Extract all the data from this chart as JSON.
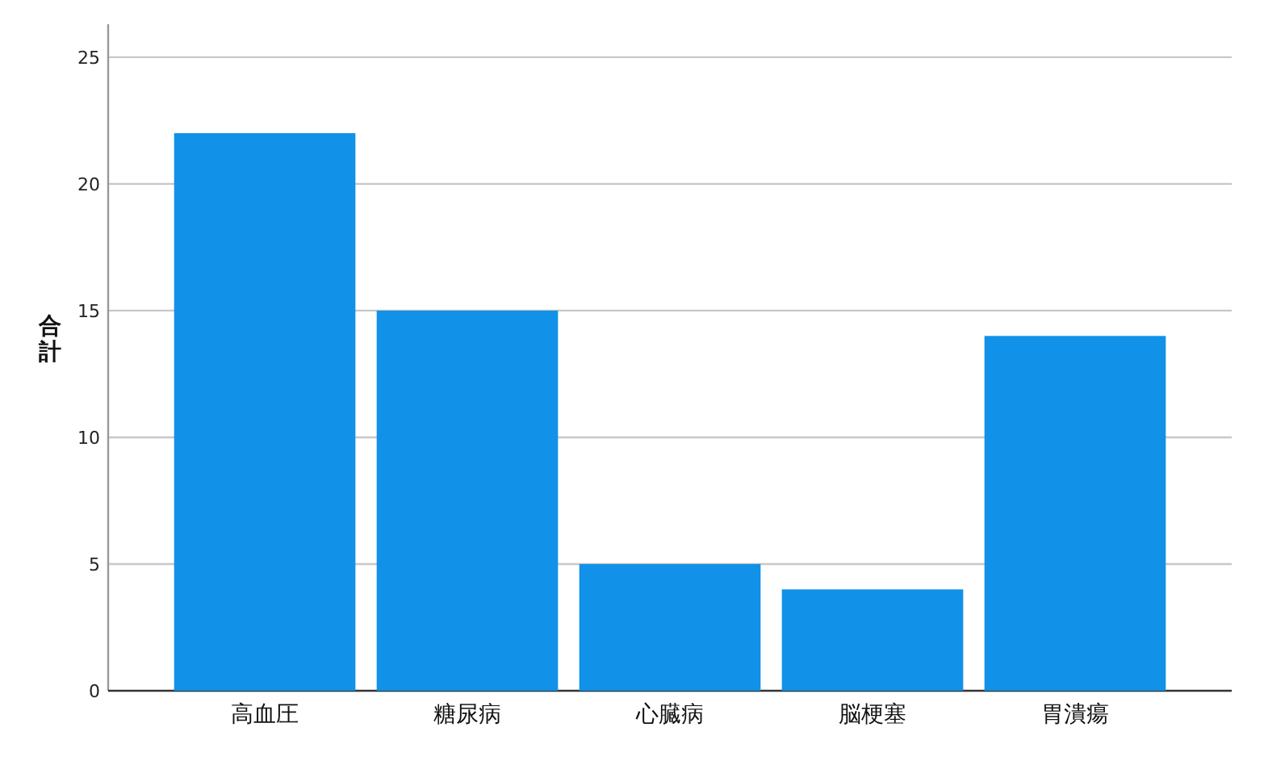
{
  "chart_data": {
    "type": "bar",
    "ylabel": "合計",
    "categories": [
      "高血圧",
      "糖尿病",
      "心臓病",
      "脳梗塞",
      "胃潰瘍"
    ],
    "values": [
      22,
      15,
      5,
      4,
      14
    ],
    "color": "#1191e7",
    "ylim": [
      0,
      26.3
    ],
    "yticks": [
      0,
      5,
      10,
      15,
      20,
      25
    ],
    "grid": "y"
  }
}
